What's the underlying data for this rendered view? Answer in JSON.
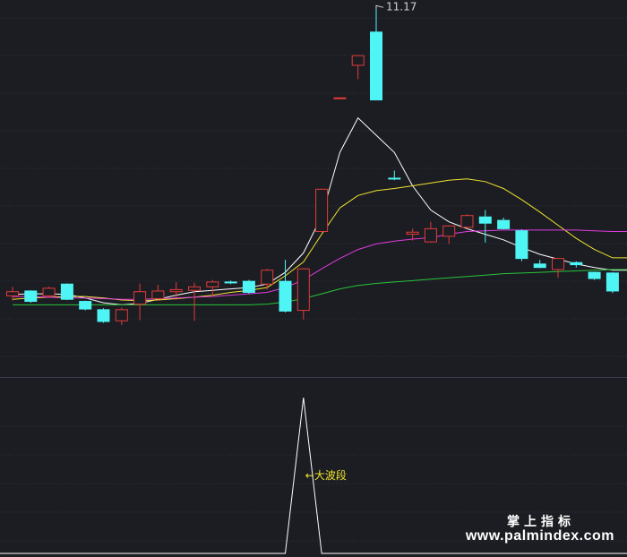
{
  "chart_data": [
    {
      "type": "candlestick",
      "title": "",
      "colors": {
        "up": "#e33b3b",
        "down": "#4ff5f5",
        "ma5": "#ffffff",
        "ma10": "#f0e330",
        "ma20": "#e03be0",
        "ma60": "#28c43a",
        "background": "#1b1d22",
        "grid": "#2e3440",
        "label": "#cfd3da"
      },
      "ylim": [
        6.0,
        11.2
      ],
      "grid": true,
      "high_label": "11.17",
      "candles": [
        {
          "open": 7.03,
          "close": 7.09,
          "high": 7.16,
          "low": 6.96
        },
        {
          "open": 7.1,
          "close": 6.95,
          "high": 7.11,
          "low": 6.93
        },
        {
          "open": 7.03,
          "close": 7.14,
          "high": 7.16,
          "low": 7.0
        },
        {
          "open": 7.2,
          "close": 6.98,
          "high": 7.21,
          "low": 6.97
        },
        {
          "open": 6.95,
          "close": 6.84,
          "high": 6.96,
          "low": 6.82
        },
        {
          "open": 6.83,
          "close": 6.66,
          "high": 6.85,
          "low": 6.64
        },
        {
          "open": 6.67,
          "close": 6.83,
          "high": 6.86,
          "low": 6.61
        },
        {
          "open": 6.91,
          "close": 7.09,
          "high": 7.21,
          "low": 6.68
        },
        {
          "open": 6.99,
          "close": 7.1,
          "high": 7.19,
          "low": 6.96
        },
        {
          "open": 7.09,
          "close": 7.12,
          "high": 7.23,
          "low": 6.97
        },
        {
          "open": 7.11,
          "close": 7.16,
          "high": 7.22,
          "low": 6.67
        },
        {
          "open": 7.16,
          "close": 7.23,
          "high": 7.26,
          "low": 7.03
        },
        {
          "open": 7.23,
          "close": 7.22,
          "high": 7.25,
          "low": 7.2
        },
        {
          "open": 7.24,
          "close": 7.08,
          "high": 7.26,
          "low": 7.06
        },
        {
          "open": 7.2,
          "close": 7.4,
          "high": 7.42,
          "low": 7.12
        },
        {
          "open": 7.24,
          "close": 6.81,
          "high": 7.55,
          "low": 6.79
        },
        {
          "open": 6.82,
          "close": 7.42,
          "high": 7.43,
          "low": 6.69
        },
        {
          "open": 7.96,
          "close": 8.57,
          "high": 8.58,
          "low": 7.95
        },
        {
          "open": 9.88,
          "close": 9.89,
          "high": 9.89,
          "low": 9.88
        },
        {
          "open": 10.36,
          "close": 10.5,
          "high": 10.5,
          "low": 10.16
        },
        {
          "open": 10.84,
          "close": 9.86,
          "high": 11.17,
          "low": 9.86
        },
        {
          "open": 8.73,
          "close": 8.72,
          "high": 8.84,
          "low": 8.7
        },
        {
          "open": 7.92,
          "close": 7.95,
          "high": 8.0,
          "low": 7.83
        },
        {
          "open": 7.81,
          "close": 8.0,
          "high": 8.1,
          "low": 7.8
        },
        {
          "open": 7.89,
          "close": 8.04,
          "high": 8.05,
          "low": 7.78
        },
        {
          "open": 8.02,
          "close": 8.19,
          "high": 8.21,
          "low": 8.0
        },
        {
          "open": 8.17,
          "close": 8.08,
          "high": 8.27,
          "low": 7.8
        },
        {
          "open": 8.12,
          "close": 8.0,
          "high": 8.16,
          "low": 7.99
        },
        {
          "open": 7.97,
          "close": 7.57,
          "high": 7.99,
          "low": 7.53
        },
        {
          "open": 7.49,
          "close": 7.44,
          "high": 7.55,
          "low": 7.43
        },
        {
          "open": 7.41,
          "close": 7.57,
          "high": 7.58,
          "low": 7.29
        },
        {
          "open": 7.51,
          "close": 7.48,
          "high": 7.53,
          "low": 7.44
        },
        {
          "open": 7.37,
          "close": 7.28,
          "high": 7.38,
          "low": 7.26
        },
        {
          "open": 7.36,
          "close": 7.1,
          "high": 7.37,
          "low": 7.07
        }
      ],
      "ma": [
        {
          "key": "ma5",
          "values": [
            7.05,
            7.06,
            7.06,
            7.05,
            7.0,
            6.93,
            6.9,
            6.92,
            6.98,
            7.04,
            7.09,
            7.11,
            7.13,
            7.15,
            7.2,
            7.37,
            7.65,
            8.18,
            9.1,
            9.6,
            9.35,
            9.1,
            8.62,
            8.27,
            8.1,
            8.0,
            7.92,
            7.84,
            7.73,
            7.63,
            7.56,
            7.49,
            7.44,
            7.4
          ]
        },
        {
          "key": "ma10",
          "values": [
            6.98,
            7.0,
            7.01,
            7.02,
            7.02,
            7.0,
            6.97,
            6.96,
            6.97,
            6.99,
            7.01,
            7.04,
            7.08,
            7.11,
            7.15,
            7.32,
            7.52,
            7.92,
            8.3,
            8.48,
            8.55,
            8.58,
            8.62,
            8.66,
            8.7,
            8.72,
            8.68,
            8.58,
            8.42,
            8.24,
            8.05,
            7.86,
            7.7,
            7.58
          ]
        },
        {
          "key": "ma20",
          "values": [
            7.02,
            7.02,
            7.01,
            7.0,
            7.0,
            6.99,
            6.98,
            6.98,
            6.99,
            7.0,
            7.01,
            7.02,
            7.04,
            7.06,
            7.08,
            7.15,
            7.26,
            7.42,
            7.57,
            7.7,
            7.78,
            7.82,
            7.85,
            7.87,
            7.92,
            7.96,
            7.97,
            7.98,
            7.98,
            7.98,
            7.98,
            7.98,
            7.97,
            7.96
          ]
        },
        {
          "key": "ma60",
          "values": [
            6.9,
            6.9,
            6.9,
            6.9,
            6.9,
            6.9,
            6.9,
            6.9,
            6.9,
            6.9,
            6.9,
            6.9,
            6.9,
            6.9,
            6.91,
            6.94,
            6.99,
            7.06,
            7.13,
            7.18,
            7.21,
            7.23,
            7.25,
            7.27,
            7.29,
            7.31,
            7.33,
            7.35,
            7.36,
            7.37,
            7.38,
            7.39,
            7.4,
            7.41
          ]
        }
      ]
    },
    {
      "type": "line",
      "title": "",
      "annotation": "←大波段",
      "colors": {
        "line": "#ffffff",
        "annotation": "#f0e330"
      },
      "ylim": [
        0,
        1
      ],
      "values": [
        0,
        0,
        0,
        0,
        0,
        0,
        0,
        0,
        0,
        0,
        0,
        0,
        0,
        0,
        0,
        0,
        1,
        0,
        0,
        0,
        0,
        0,
        0,
        0,
        0,
        0,
        0,
        0,
        0,
        0,
        0,
        0,
        0,
        0
      ]
    }
  ],
  "watermark": {
    "cn": "掌上指标",
    "en": "www.palmindex.com"
  }
}
